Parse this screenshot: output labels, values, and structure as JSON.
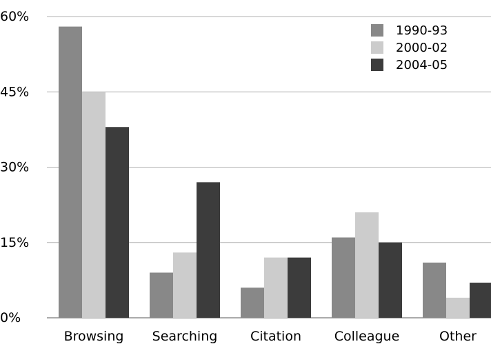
{
  "chart_data": {
    "type": "bar",
    "categories": [
      "Browsing",
      "Searching",
      "Citation",
      "Colleague",
      "Other"
    ],
    "series": [
      {
        "name": "1990-93",
        "values": [
          58,
          9,
          6,
          16,
          11
        ],
        "color": "#888888"
      },
      {
        "name": "2000-02",
        "values": [
          45,
          13,
          12,
          21,
          4
        ],
        "color": "#cccccc"
      },
      {
        "name": "2004-05",
        "values": [
          38,
          27,
          12,
          15,
          7
        ],
        "color": "#3c3c3c"
      }
    ],
    "yticks": [
      0,
      15,
      30,
      45,
      60
    ],
    "ytick_labels": [
      "0%",
      "15%",
      "30%",
      "45%",
      "60%"
    ],
    "ylim": [
      0,
      60
    ],
    "grid": true,
    "legend_position": "top-right"
  }
}
